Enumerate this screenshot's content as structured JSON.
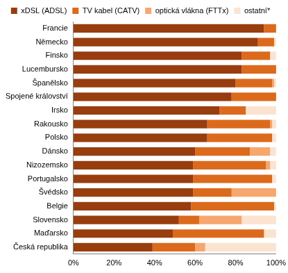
{
  "chart_data": {
    "type": "bar",
    "orientation": "horizontal",
    "stacked": true,
    "grid": false,
    "legend": "top",
    "categories": [
      "Francie",
      "Německo",
      "Finsko",
      "Lucembursko",
      "Španělsko",
      "Spojené království",
      "Irsko",
      "Rakousko",
      "Polsko",
      "Dánsko",
      "Nizozemsko",
      "Portugalsko",
      "Švédsko",
      "Belgie",
      "Slovensko",
      "Maďarsko",
      "Česká republika"
    ],
    "series": [
      {
        "name": "xDSL (ADSL)",
        "color": "#983d0e",
        "values": [
          94,
          91,
          83,
          83,
          80,
          78,
          72,
          66,
          66,
          60,
          59,
          59,
          59,
          58,
          52,
          49,
          39
        ]
      },
      {
        "name": "TV kabel (CATV)",
        "color": "#dc6a1c",
        "values": [
          6,
          8,
          14,
          17,
          18,
          22,
          13,
          31,
          32,
          27,
          36,
          39,
          19,
          41,
          10,
          45,
          21
        ]
      },
      {
        "name": "optická vlákna (FTTx)",
        "color": "#f5a76d",
        "values": [
          0,
          0,
          0,
          0,
          1,
          0,
          0,
          1,
          0,
          10,
          2,
          0,
          22,
          0,
          21,
          0,
          5
        ]
      },
      {
        "name": "ostatní*",
        "color": "#fbe3d0",
        "values": [
          0,
          1,
          3,
          0,
          1,
          0,
          15,
          2,
          2,
          3,
          3,
          2,
          0,
          1,
          17,
          6,
          35
        ]
      }
    ],
    "xlim": [
      0,
      100
    ],
    "xticks": [
      {
        "value": 0,
        "label": "0%"
      },
      {
        "value": 20,
        "label": "20%"
      },
      {
        "value": 40,
        "label": "40%"
      },
      {
        "value": 60,
        "label": "60%"
      },
      {
        "value": 80,
        "label": "80%"
      },
      {
        "value": 100,
        "label": "100%"
      }
    ]
  }
}
